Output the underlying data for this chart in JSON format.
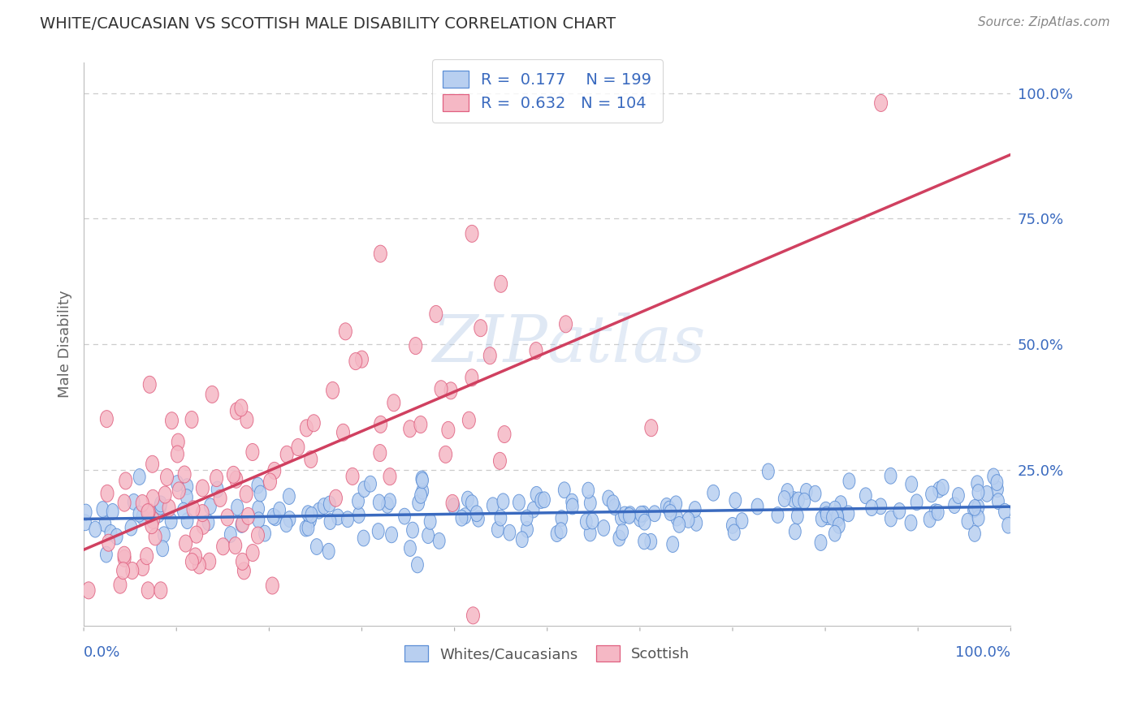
{
  "title": "WHITE/CAUCASIAN VS SCOTTISH MALE DISABILITY CORRELATION CHART",
  "source": "Source: ZipAtlas.com",
  "ylabel": "Male Disability",
  "legend_label1": "Whites/Caucasians",
  "legend_label2": "Scottish",
  "R1": "0.177",
  "N1": "199",
  "R2": "0.632",
  "N2": "104",
  "color1_fill": "#b8cff0",
  "color1_edge": "#5b8ed6",
  "color2_fill": "#f5b8c5",
  "color2_edge": "#e06080",
  "line_color1": "#3a6abf",
  "line_color2": "#d04060",
  "text_blue": "#3a6abf",
  "text_dark": "#333333",
  "grid_color": "#cccccc",
  "watermark_color": "#ccdff5",
  "background": "#ffffff",
  "ytick_vals": [
    0.0,
    0.25,
    0.5,
    0.75,
    1.0
  ],
  "ytick_labels": [
    "",
    "25.0%",
    "50.0%",
    "75.0%",
    "100.0%"
  ],
  "xmin": 0.0,
  "xmax": 1.0,
  "ymin": -0.06,
  "ymax": 1.06
}
